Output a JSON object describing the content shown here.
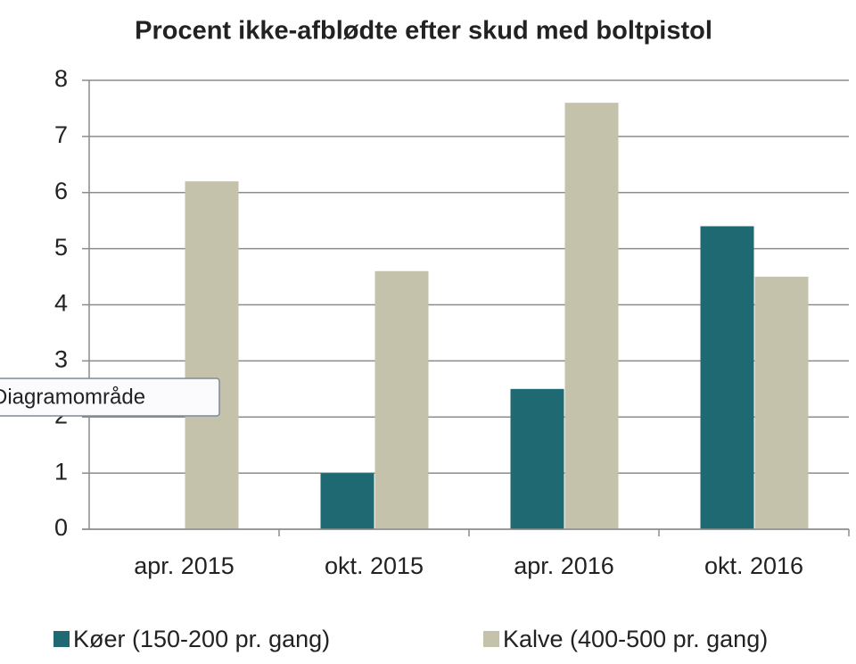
{
  "chart_data": {
    "type": "bar",
    "title": "Procent ikke-afblødte efter skud  med boltpistol",
    "categories": [
      "apr. 2015",
      "okt. 2015",
      "apr. 2016",
      "okt. 2016"
    ],
    "series": [
      {
        "name": "Køer (150-200 pr. gang)",
        "color": "#1f6a72",
        "values": [
          0,
          1,
          2.5,
          5.4
        ]
      },
      {
        "name": "Kalve (400-500 pr. gang)",
        "color": "#c5c2ab",
        "values": [
          6.2,
          4.6,
          7.6,
          4.5
        ]
      }
    ],
    "ylim": [
      0,
      8
    ],
    "yticks": [
      0,
      1,
      2,
      3,
      4,
      5,
      6,
      7,
      8
    ],
    "grid": true,
    "legend": "bottom",
    "tooltip": "Diagramområde"
  }
}
